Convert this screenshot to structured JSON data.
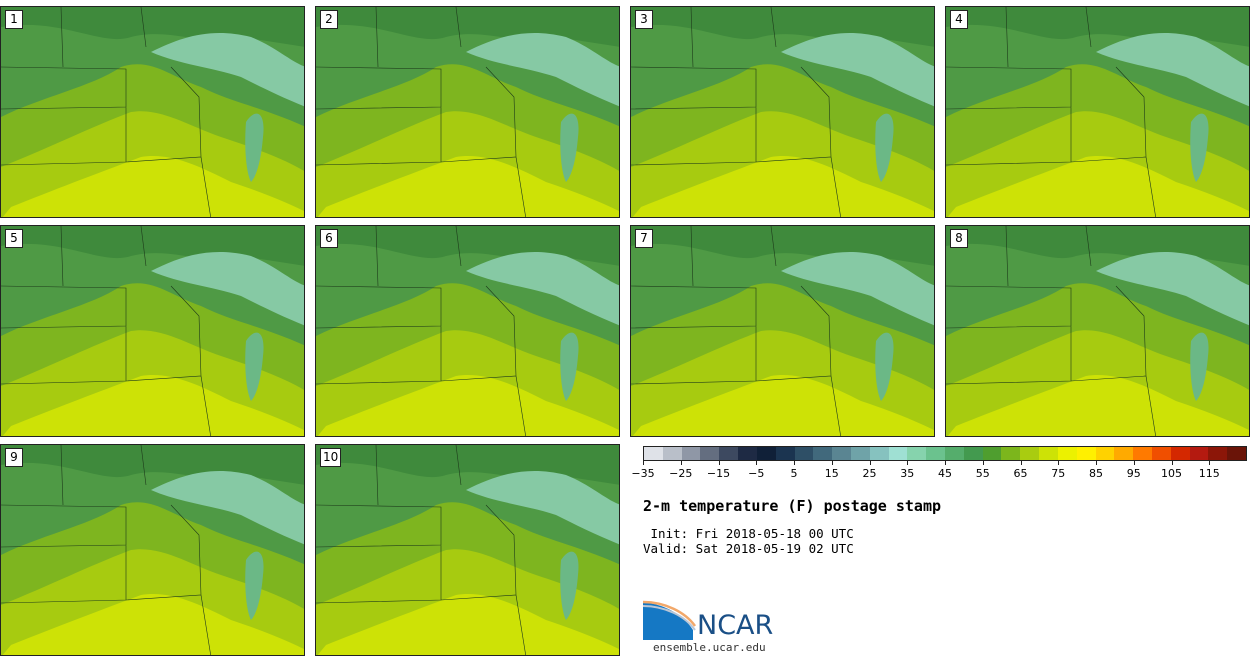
{
  "panels": [
    {
      "label": "1"
    },
    {
      "label": "2"
    },
    {
      "label": "3"
    },
    {
      "label": "4"
    },
    {
      "label": "5"
    },
    {
      "label": "6"
    },
    {
      "label": "7"
    },
    {
      "label": "8"
    },
    {
      "label": "9"
    },
    {
      "label": "10"
    }
  ],
  "colorbar": {
    "colors": [
      "#dfe2e8",
      "#b9bfc9",
      "#8f97a6",
      "#646e80",
      "#3d4960",
      "#1e2a44",
      "#102038",
      "#1b3450",
      "#2e4f66",
      "#41697c",
      "#5a8592",
      "#6fa3a8",
      "#86c2bf",
      "#9fe0d3",
      "#86d3ad",
      "#6bc28e",
      "#55ad6c",
      "#439a4f",
      "#4f9e2f",
      "#7cb61c",
      "#a9cc10",
      "#cde206",
      "#ecf100",
      "#fff000",
      "#ffd200",
      "#ffaa00",
      "#ff7a00",
      "#f04f00",
      "#d42800",
      "#b41a10",
      "#8c1608",
      "#6a1408"
    ],
    "ticks": [
      "−35",
      "−25",
      "−15",
      "−5",
      "5",
      "15",
      "25",
      "35",
      "45",
      "55",
      "65",
      "75",
      "85",
      "95",
      "105",
      "115"
    ]
  },
  "title": "2-m temperature (F) postage stamp",
  "init": " Init: Fri 2018-05-18 00 UTC",
  "valid": "Valid: Sat 2018-05-19 02 UTC",
  "logo": {
    "text": "NCAR",
    "site": "ensemble.ucar.edu"
  }
}
